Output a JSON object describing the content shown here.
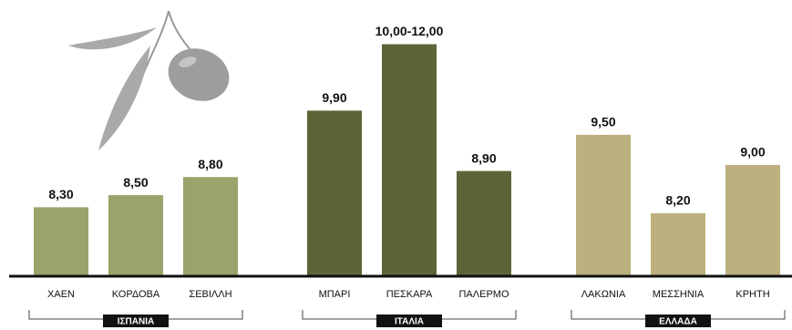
{
  "chart_data": {
    "type": "bar",
    "groups": [
      {
        "name": "ΙΣΠΑΝΙΑ",
        "color": "#9ba26b",
        "categories": [
          "ΧΑΕΝ",
          "ΚΟΡΔΟΒΑ",
          "ΣΕΒΙΛΛΗ"
        ],
        "values": [
          8.3,
          8.5,
          8.8
        ],
        "value_labels": [
          "8,30",
          "8,50",
          "8,80"
        ]
      },
      {
        "name": "ΙΤΑΛΙΑ",
        "color": "#5d6437",
        "categories": [
          "ΜΠΑΡΙ",
          "ΠΕΣΚΑΡΑ",
          "ΠΑΛΕΡΜΟ"
        ],
        "values": [
          9.9,
          11,
          8.9
        ],
        "value_labels": [
          "9,90",
          "10,00-12,00",
          "8,90"
        ]
      },
      {
        "name": "ΕΛΛΑΔΑ",
        "color": "#bbb07e",
        "categories": [
          "ΛΑΚΩΝΙΑ",
          "ΜΕΣΣΗΝΙΑ",
          "ΚΡΗΤΗ"
        ],
        "values": [
          9.5,
          8.2,
          9.0
        ],
        "value_labels": [
          "9,50",
          "8,20",
          "9,00"
        ]
      }
    ]
  }
}
